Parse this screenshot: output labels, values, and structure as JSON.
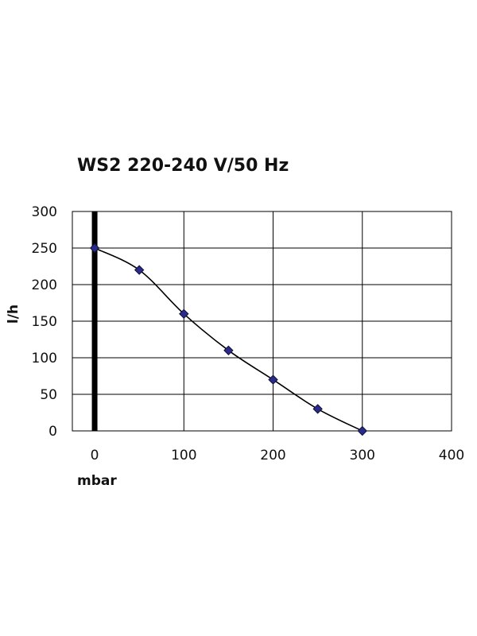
{
  "chart_data": {
    "type": "line",
    "title": "WS2 220-240 V/50 Hz",
    "xlabel": "mbar",
    "ylabel": "l/h",
    "xlim": [
      -25,
      400
    ],
    "ylim": [
      0,
      300
    ],
    "x_ticks": [
      "0",
      "100",
      "200",
      "300",
      "400"
    ],
    "y_ticks": [
      "0",
      "50",
      "100",
      "150",
      "200",
      "250",
      "300"
    ],
    "grid": true,
    "series": [
      {
        "x": [
          0,
          50,
          100,
          150,
          200,
          250,
          300
        ],
        "values": [
          250,
          220,
          160,
          110,
          70,
          30,
          0
        ]
      }
    ],
    "colors": {
      "line": "#000000",
      "marker_fill": "#2a2a8c",
      "marker_stroke": "#111133",
      "grid": "#000000",
      "zero_line": "#000000"
    }
  }
}
